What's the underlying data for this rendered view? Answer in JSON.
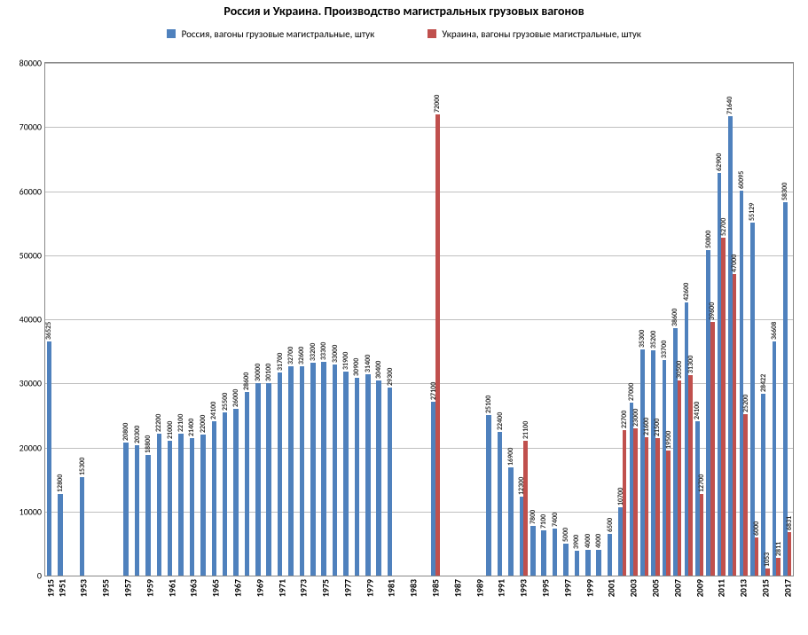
{
  "chart": {
    "type": "bar-grouped",
    "title": "Россия и Украина. Производство магистральных грузовых вагонов",
    "title_fontsize": 14,
    "background_color": "#ffffff",
    "plot_border_color": "#888888",
    "grid_color": "#bfbfbf",
    "label_color": "#333333",
    "legend": [
      {
        "label": "Россия, вагоны грузовые магистральные, штук",
        "color": "#4f81bd"
      },
      {
        "label": "Украина, вагоны грузовые магистральные, штук",
        "color": "#c0504d"
      }
    ],
    "legend_fontsize": 11,
    "y_axis": {
      "min": 0,
      "max": 80000,
      "tick_step": 10000,
      "tick_fontsize": 10
    },
    "x_tick_fontsize": 10,
    "value_label_fontsize": 8,
    "bar_gap_ratio": 0.25,
    "colors": {
      "russia": "#4f81bd",
      "ukraine": "#c0504d"
    },
    "categories": [
      "1915",
      "1951",
      "1953",
      "1955",
      "1957",
      "1959",
      "1961",
      "1963",
      "1965",
      "1967",
      "1969",
      "1971",
      "1973",
      "1975",
      "1977",
      "1979",
      "1981",
      "1983",
      "1985",
      "1987",
      "1989",
      "1991",
      "1993",
      "1995",
      "1997",
      "1999",
      "2001",
      "2003",
      "2005",
      "2007",
      "2009",
      "2011",
      "2013",
      "2015",
      "2017"
    ],
    "data": [
      {
        "year": "1915",
        "russia": 36525,
        "ukraine": null
      },
      {
        "year": "1951",
        "russia": 12800,
        "ukraine": null
      },
      {
        "year": "1952",
        "russia": null,
        "ukraine": null
      },
      {
        "year": "1953",
        "russia": 15300,
        "ukraine": null
      },
      {
        "year": "1954",
        "russia": null,
        "ukraine": null
      },
      {
        "year": "1955",
        "russia": null,
        "ukraine": null
      },
      {
        "year": "1956",
        "russia": null,
        "ukraine": null
      },
      {
        "year": "1957",
        "russia": 20800,
        "ukraine": null
      },
      {
        "year": "1958",
        "russia": 20300,
        "ukraine": null
      },
      {
        "year": "1959",
        "russia": 18800,
        "ukraine": null
      },
      {
        "year": "1960",
        "russia": 22200,
        "ukraine": null
      },
      {
        "year": "1961",
        "russia": 21000,
        "ukraine": null
      },
      {
        "year": "1962",
        "russia": 22100,
        "ukraine": null
      },
      {
        "year": "1963",
        "russia": 21400,
        "ukraine": null
      },
      {
        "year": "1964",
        "russia": 22000,
        "ukraine": null
      },
      {
        "year": "1965",
        "russia": 24100,
        "ukraine": null
      },
      {
        "year": "1966",
        "russia": 25500,
        "ukraine": null
      },
      {
        "year": "1967",
        "russia": 26000,
        "ukraine": null
      },
      {
        "year": "1968",
        "russia": 28600,
        "ukraine": null
      },
      {
        "year": "1969",
        "russia": 30000,
        "ukraine": null
      },
      {
        "year": "1970",
        "russia": 30100,
        "ukraine": null
      },
      {
        "year": "1971",
        "russia": 31700,
        "ukraine": null
      },
      {
        "year": "1972",
        "russia": 32700,
        "ukraine": null
      },
      {
        "year": "1973",
        "russia": 32600,
        "ukraine": null
      },
      {
        "year": "1974",
        "russia": 33200,
        "ukraine": null
      },
      {
        "year": "1975",
        "russia": 33300,
        "ukraine": null
      },
      {
        "year": "1976",
        "russia": 33000,
        "ukraine": null
      },
      {
        "year": "1977",
        "russia": 31900,
        "ukraine": null
      },
      {
        "year": "1978",
        "russia": 30900,
        "ukraine": null
      },
      {
        "year": "1979",
        "russia": 31400,
        "ukraine": null
      },
      {
        "year": "1980",
        "russia": 30400,
        "ukraine": null
      },
      {
        "year": "1981",
        "russia": 29300,
        "ukraine": null
      },
      {
        "year": "1982",
        "russia": null,
        "ukraine": null
      },
      {
        "year": "1983",
        "russia": null,
        "ukraine": null
      },
      {
        "year": "1984",
        "russia": null,
        "ukraine": null
      },
      {
        "year": "1985",
        "russia": 27100,
        "ukraine": 72000
      },
      {
        "year": "1986",
        "russia": null,
        "ukraine": null
      },
      {
        "year": "1987",
        "russia": null,
        "ukraine": null
      },
      {
        "year": "1988",
        "russia": null,
        "ukraine": null
      },
      {
        "year": "1989",
        "russia": null,
        "ukraine": null
      },
      {
        "year": "1990",
        "russia": 25100,
        "ukraine": null
      },
      {
        "year": "1991",
        "russia": 22400,
        "ukraine": null
      },
      {
        "year": "1992",
        "russia": 16900,
        "ukraine": null
      },
      {
        "year": "1993",
        "russia": 12300,
        "ukraine": 21100
      },
      {
        "year": "1994",
        "russia": 7800,
        "ukraine": null
      },
      {
        "year": "1995",
        "russia": 7100,
        "ukraine": null
      },
      {
        "year": "1996",
        "russia": 7400,
        "ukraine": null
      },
      {
        "year": "1997",
        "russia": 5000,
        "ukraine": null
      },
      {
        "year": "1998",
        "russia": 3900,
        "ukraine": null
      },
      {
        "year": "1999",
        "russia": 4000,
        "ukraine": null
      },
      {
        "year": "2000",
        "russia": 4000,
        "ukraine": null
      },
      {
        "year": "2001",
        "russia": 6500,
        "ukraine": null
      },
      {
        "year": "2002",
        "russia": 10700,
        "ukraine": 22700
      },
      {
        "year": "2003",
        "russia": 27000,
        "ukraine": 23000
      },
      {
        "year": "2004",
        "russia": 35300,
        "ukraine": 21600
      },
      {
        "year": "2005",
        "russia": 35200,
        "ukraine": 21500
      },
      {
        "year": "2006",
        "russia": 33700,
        "ukraine": 19500
      },
      {
        "year": "2007",
        "russia": 38600,
        "ukraine": 30500
      },
      {
        "year": "2008",
        "russia": 42600,
        "ukraine": 31300
      },
      {
        "year": "2009",
        "russia": 24100,
        "ukraine": 12700
      },
      {
        "year": "2010",
        "russia": 50800,
        "ukraine": 39600
      },
      {
        "year": "2011",
        "russia": 62900,
        "ukraine": 52700
      },
      {
        "year": "2012",
        "russia": 71640,
        "ukraine": 47000
      },
      {
        "year": "2013",
        "russia": 60095,
        "ukraine": 25200
      },
      {
        "year": "2014",
        "russia": 55129,
        "ukraine": 6000
      },
      {
        "year": "2015",
        "russia": 28422,
        "ukraine": 1053
      },
      {
        "year": "2016",
        "russia": 36608,
        "ukraine": 2811
      },
      {
        "year": "2017",
        "russia": 58300,
        "ukraine": 6831
      }
    ]
  }
}
